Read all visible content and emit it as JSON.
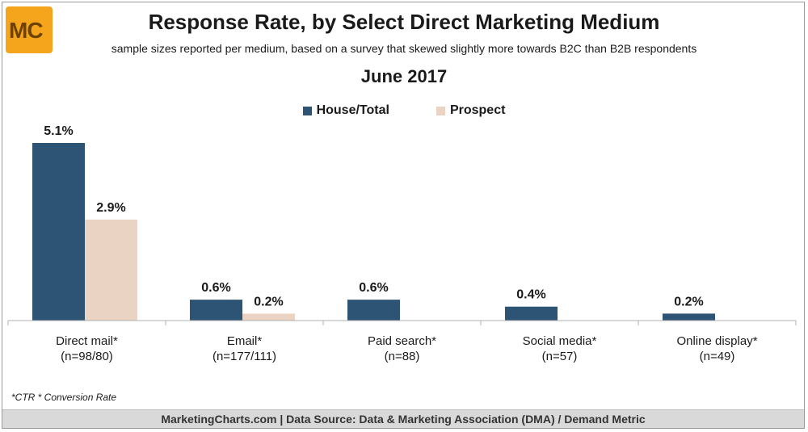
{
  "logo": {
    "text": "MC"
  },
  "header": {
    "title": "Response Rate, by Select Direct Marketing Medium",
    "subtitle": "sample sizes reported per medium, based on a survey that skewed slightly more towards B2C than B2B respondents",
    "date": "June 2017"
  },
  "footnote": "*CTR * Conversion Rate",
  "source": "MarketingCharts.com | Data Source: Data & Marketing Association (DMA) / Demand Metric",
  "colors": {
    "house": "#2e5475",
    "prospect": "#ead3c2",
    "axis": "#b0b0b0"
  },
  "chart_data": {
    "type": "bar",
    "categories": [
      [
        "Direct mail*",
        "(n=98/80)"
      ],
      [
        "Email*",
        "(n=177/111)"
      ],
      [
        "Paid search*",
        "(n=88)"
      ],
      [
        "Social media*",
        "(n=57)"
      ],
      [
        "Online display*",
        "(n=49)"
      ]
    ],
    "series": [
      {
        "name": "House/Total",
        "values": [
          5.1,
          0.6,
          0.6,
          0.4,
          0.2
        ],
        "labels": [
          "5.1%",
          "0.6%",
          "0.6%",
          "0.4%",
          "0.2%"
        ]
      },
      {
        "name": "Prospect",
        "values": [
          2.9,
          0.2,
          null,
          null,
          null
        ],
        "labels": [
          "2.9%",
          "0.2%",
          null,
          null,
          null
        ]
      }
    ],
    "ylim": [
      0,
      5.1
    ],
    "grid": false,
    "legend": "top-center"
  }
}
